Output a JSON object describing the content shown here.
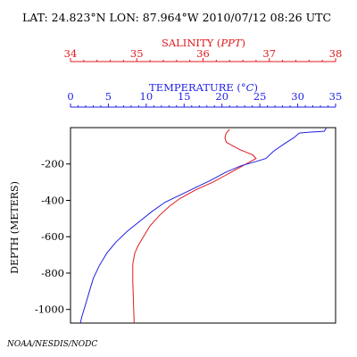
{
  "header": {
    "location": "LAT: 24.823°N LON: 87.964°W 2010/07/12 08:26 UTC"
  },
  "footer": {
    "credit": "NOAA/NESDIS/NODC"
  },
  "colors": {
    "salinity": "#e0191d",
    "temperature": "#1f1fe6",
    "frame": "#000000"
  },
  "chart_data": {
    "type": "line",
    "salinity_axis": {
      "label": "SALINITY (PPT)",
      "range": [
        34,
        38
      ],
      "ticks": [
        "34",
        "35",
        "36",
        "37",
        "38"
      ],
      "color": "#e0191d"
    },
    "temperature_axis": {
      "label": "TEMPERATURE (°C)",
      "range": [
        0,
        35
      ],
      "ticks": [
        "0",
        "5",
        "10",
        "15",
        "20",
        "25",
        "30",
        "35"
      ],
      "color": "#1f1fe6"
    },
    "depth_axis": {
      "label": "DEPTH (METERS)",
      "range": [
        0,
        1075
      ],
      "ticks": [
        "-200",
        "-400",
        "-600",
        "-800",
        "-1000"
      ],
      "tick_values": [
        200,
        400,
        600,
        800,
        1000
      ]
    },
    "series": [
      {
        "quantity": "salinity",
        "points": [
          {
            "value": 36.4,
            "depth": 10
          },
          {
            "value": 36.35,
            "depth": 30
          },
          {
            "value": 36.33,
            "depth": 55
          },
          {
            "value": 36.35,
            "depth": 80
          },
          {
            "value": 36.45,
            "depth": 100
          },
          {
            "value": 36.55,
            "depth": 120
          },
          {
            "value": 36.75,
            "depth": 150
          },
          {
            "value": 36.8,
            "depth": 170
          },
          {
            "value": 36.7,
            "depth": 190
          },
          {
            "value": 36.55,
            "depth": 220
          },
          {
            "value": 36.35,
            "depth": 260
          },
          {
            "value": 36.15,
            "depth": 300
          },
          {
            "value": 35.9,
            "depth": 340
          },
          {
            "value": 35.65,
            "depth": 390
          },
          {
            "value": 35.5,
            "depth": 430
          },
          {
            "value": 35.35,
            "depth": 480
          },
          {
            "value": 35.2,
            "depth": 540
          },
          {
            "value": 35.1,
            "depth": 600
          },
          {
            "value": 35.02,
            "depth": 650
          },
          {
            "value": 34.97,
            "depth": 690
          },
          {
            "value": 34.94,
            "depth": 750
          },
          {
            "value": 34.94,
            "depth": 850
          },
          {
            "value": 34.95,
            "depth": 950
          },
          {
            "value": 34.96,
            "depth": 1075
          }
        ]
      },
      {
        "quantity": "temperature",
        "points": [
          {
            "value": 33.8,
            "depth": 0
          },
          {
            "value": 33.5,
            "depth": 20
          },
          {
            "value": 31.5,
            "depth": 25
          },
          {
            "value": 30.2,
            "depth": 30
          },
          {
            "value": 29.5,
            "depth": 55
          },
          {
            "value": 28.2,
            "depth": 90
          },
          {
            "value": 26.8,
            "depth": 130
          },
          {
            "value": 25.8,
            "depth": 170
          },
          {
            "value": 24.2,
            "depth": 190
          },
          {
            "value": 22.5,
            "depth": 210
          },
          {
            "value": 20.5,
            "depth": 245
          },
          {
            "value": 18.5,
            "depth": 290
          },
          {
            "value": 16.5,
            "depth": 330
          },
          {
            "value": 14.5,
            "depth": 370
          },
          {
            "value": 12.5,
            "depth": 410
          },
          {
            "value": 10.8,
            "depth": 460
          },
          {
            "value": 9.0,
            "depth": 520
          },
          {
            "value": 7.5,
            "depth": 570
          },
          {
            "value": 6.0,
            "depth": 630
          },
          {
            "value": 4.8,
            "depth": 690
          },
          {
            "value": 3.8,
            "depth": 760
          },
          {
            "value": 3.0,
            "depth": 830
          },
          {
            "value": 2.5,
            "depth": 900
          },
          {
            "value": 2.0,
            "depth": 970
          },
          {
            "value": 1.5,
            "depth": 1040
          },
          {
            "value": 1.3,
            "depth": 1075
          }
        ]
      }
    ]
  }
}
